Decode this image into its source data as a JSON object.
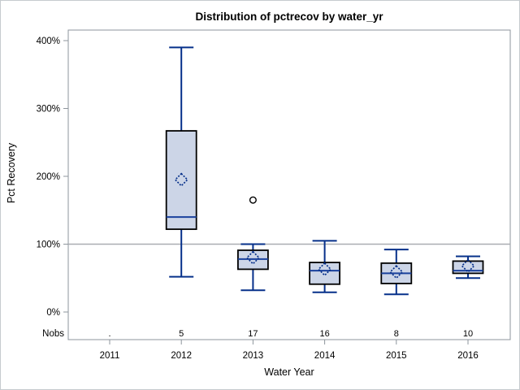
{
  "chart_data": {
    "type": "boxplot",
    "title": "Distribution of pctrecov by water_yr",
    "xlabel": "Water Year",
    "ylabel": "Pct Recovery",
    "nobs_label": "Nobs",
    "categories": [
      "2011",
      "2012",
      "2013",
      "2014",
      "2015",
      "2016"
    ],
    "nobs": [
      ".",
      "5",
      "17",
      "16",
      "8",
      "10"
    ],
    "yticks": [
      0,
      100,
      200,
      300,
      400
    ],
    "ytick_suffix": "%",
    "ylim": [
      0,
      400
    ],
    "reference_line": 100,
    "grid": false,
    "legend": "none",
    "series": [
      {
        "category": "2011",
        "n": null,
        "box": null
      },
      {
        "category": "2012",
        "n": 5,
        "box": {
          "low": 52,
          "q1": 122,
          "median": 140,
          "q3": 267,
          "high": 390,
          "mean": 195,
          "outliers": []
        }
      },
      {
        "category": "2013",
        "n": 17,
        "box": {
          "low": 32,
          "q1": 63,
          "median": 78,
          "q3": 91,
          "high": 100,
          "mean": 80,
          "outliers": [
            165
          ]
        }
      },
      {
        "category": "2014",
        "n": 16,
        "box": {
          "low": 29,
          "q1": 41,
          "median": 61,
          "q3": 73,
          "high": 105,
          "mean": 63,
          "outliers": []
        }
      },
      {
        "category": "2015",
        "n": 8,
        "box": {
          "low": 26,
          "q1": 42,
          "median": 57,
          "q3": 72,
          "high": 92,
          "mean": 59,
          "outliers": []
        }
      },
      {
        "category": "2016",
        "n": 10,
        "box": {
          "low": 50,
          "q1": 57,
          "median": 61,
          "q3": 75,
          "high": 82,
          "mean": 68,
          "outliers": []
        }
      }
    ],
    "colors": {
      "box_fill": "#ccd5e7",
      "box_border": "#000000",
      "median_line": "#1a419c",
      "whisker": "#06308a",
      "mean_marker": "#06308a",
      "reference_line": "#a9adb1",
      "frame_border": "#8d959c",
      "outlier": "#000000",
      "text": "#000000"
    }
  }
}
